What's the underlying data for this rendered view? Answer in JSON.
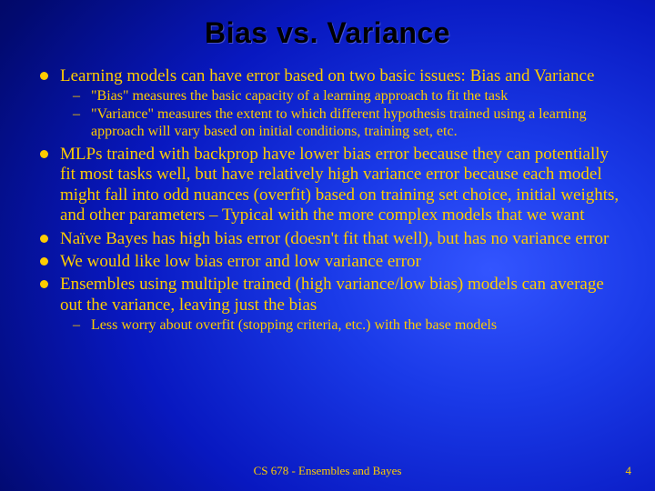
{
  "title": "Bias vs. Variance",
  "bullets": [
    {
      "text": "Learning models can have error based on two basic issues: Bias and Variance",
      "sub": [
        "\"Bias\" measures the basic capacity of a learning approach to fit the task",
        "\"Variance\" measures the extent to which different hypothesis trained using a learning approach will vary based on initial conditions, training set, etc."
      ]
    },
    {
      "text": "MLPs trained with backprop have lower bias error because they can potentially fit most tasks well, but have relatively high variance error because each model might fall into odd nuances (overfit) based on training set choice, initial weights, and other parameters – Typical with the more complex models that we want",
      "sub": []
    },
    {
      "text": "Naïve Bayes has high bias error (doesn't fit that well), but has no variance error",
      "sub": []
    },
    {
      "text": "We would like low bias error and low variance error",
      "sub": []
    },
    {
      "text": "Ensembles using multiple trained (high variance/low bias) models can average out the variance, leaving just the bias",
      "sub": [
        "Less worry about overfit (stopping criteria, etc.) with the base models"
      ]
    }
  ],
  "footer": "CS 678 - Ensembles and Bayes",
  "page": "4"
}
